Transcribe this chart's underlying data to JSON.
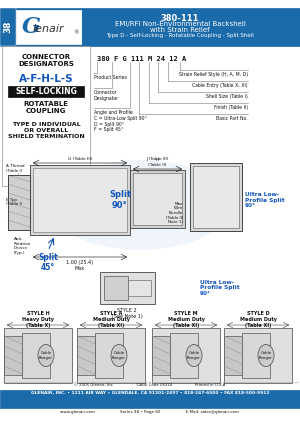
{
  "title_line1": "380-111",
  "title_line2": "EMI/RFI Non-Environmental Backshell",
  "title_line3": "with Strain Relief",
  "title_line4": "Type D - Self-Locking - Rotatable Coupling - Split Shell",
  "header_bg": "#1b6aaa",
  "page_num": "38",
  "logo_text": "Glenair",
  "connector_designators": "CONNECTOR\nDESIGNATORS",
  "designator_letters": "A-F-H-L-S",
  "self_locking": "SELF-LOCKING",
  "rotatable": "ROTATABLE\nCOUPLING",
  "type_d_text": "TYPE D INDIVIDUAL\nOR OVERALL\nSHIELD TERMINATION",
  "part_number_example": "380 F G 111 M 24 12 A",
  "labels_left": [
    "Product Series",
    "Connector\nDesignator",
    "Angle and Profile:\nC = Ultra-Low Split 90°\nD = Split 90°\nF = Split 45°"
  ],
  "labels_right": [
    "Strain Relief Style (H, A, M, D)",
    "Cable Entry (Table X, XI)",
    "Shell Size (Table I)",
    "Finish (Table II)",
    "Basic Part No."
  ],
  "style_h": "STYLE H\nHeavy Duty\n(Table X)",
  "style_a": "STYLE A\nMedium Duty\n(Table XI)",
  "style_m": "STYLE M\nMedium Duty\n(Table XI)",
  "style_d": "STYLE D\nMedium Duty\n(Table XI)",
  "style_2": "STYLE 2\n(See Note 1)",
  "ultra_low": "Ultra Low-\nProfile Split\n90°",
  "split_90": "Split\n90°",
  "split_45": "Split\n45°",
  "footer_copy": "© 2005 Glenair, Inc.                  CAGE Code 06324                  Printed in U.S.A.",
  "footer_main": "GLENAIR, INC. • 1211 AIR WAY • GLENDALE, CA 91201-2497 • 818-247-6000 • FAX 818-500-9912",
  "footer_web": "www.glenair.com                    Series 38 • Page 82                    E-Mail: sales@glenair.com",
  "accent_blue": "#1b6aaa",
  "light_blue": "#aaccee",
  "bg_color": "#ffffff",
  "text_dark": "#111111",
  "blue_text": "#1155bb",
  "gray_line": "#777777"
}
